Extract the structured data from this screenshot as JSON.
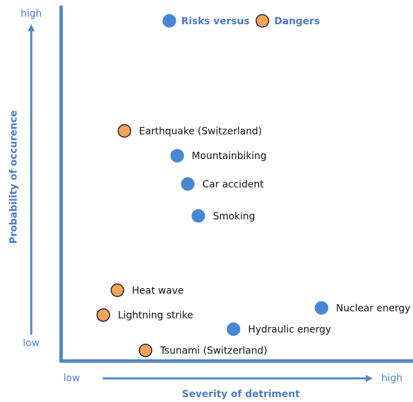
{
  "chart_data": {
    "type": "scatter",
    "xlabel": "Severity of detriment",
    "ylabel": "Probability of occurence",
    "xlim": [
      0,
      100
    ],
    "ylim": [
      0,
      100
    ],
    "xticks": [
      {
        "value": 3,
        "label": "low"
      },
      {
        "value": 94,
        "label": "high"
      }
    ],
    "yticks": [
      {
        "value": 5,
        "label": "low"
      },
      {
        "value": 98,
        "label": "high"
      }
    ],
    "axis_color": "#4f86c6",
    "series": [
      {
        "name": "Risks versus",
        "color": "#4a86d6",
        "edge": "#4a86d6",
        "labels": [
          "Mountainbiking",
          "Car accident",
          "Smoking",
          "Nuclear energy",
          "Hydraulic energy"
        ],
        "x": [
          33,
          36,
          39,
          74,
          49
        ],
        "values": [
          58,
          50,
          41,
          15,
          9
        ]
      },
      {
        "name": "Dangers",
        "color": "#f4a45a",
        "edge": "#222222",
        "labels": [
          "Earthquake (Switzerland)",
          "Heat wave",
          "Lightning strike",
          "Tsunami (Switzerland)"
        ],
        "x": [
          18,
          16,
          12,
          24
        ],
        "values": [
          65,
          20,
          13,
          3
        ]
      }
    ]
  }
}
